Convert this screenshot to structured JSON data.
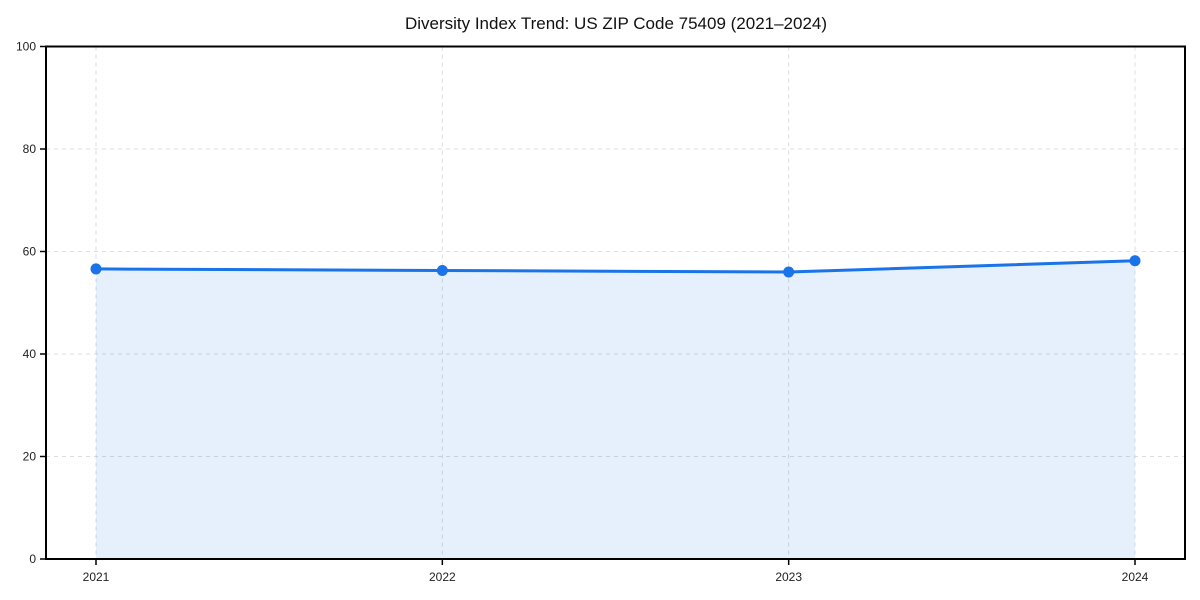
{
  "chart_data": {
    "type": "area",
    "title": "Diversity Index Trend: US ZIP Code 75409 (2021–2024)",
    "x": [
      "2021",
      "2022",
      "2023",
      "2024"
    ],
    "series": [
      {
        "name": "Diversity Index",
        "values": [
          56.6,
          56.3,
          56.0,
          58.2
        ]
      }
    ],
    "xlabel": "",
    "ylabel": "",
    "ylim": [
      0,
      100
    ],
    "yticks": [
      0,
      20,
      40,
      60,
      80,
      100
    ],
    "grid": "dashed-both-axes",
    "legend": "none",
    "colors": {
      "line": "#1a73e8",
      "marker": "#1a73e8",
      "fill": "rgba(26,115,232,0.11)",
      "grid": "#dcdcdc",
      "axis": "#000000",
      "tick_label": "#222222",
      "title": "#111111",
      "background": "#ffffff"
    }
  }
}
